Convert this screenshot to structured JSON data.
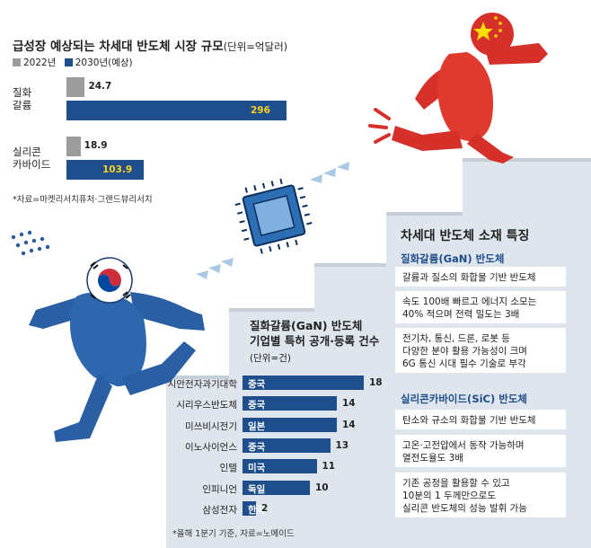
{
  "market_chart": {
    "title": "급성장 예상되는 차세대 반도체 시장 규모",
    "unit": "(단위=억달러)",
    "legend": [
      {
        "label": "2022년",
        "color": "#9c9c9c"
      },
      {
        "label": "2030년(예상)",
        "color": "#1f4e8c"
      }
    ],
    "source": "*자료=마켓리서치퓨처·그랜드뷰리서치"
  },
  "patent_chart": {
    "title_line1": "질화갈륨(GaN) 반도체",
    "title_line2": "기업별 특허 공개·등록 건수",
    "unit": "(단위=건)",
    "source": "*올해 1분기 기준, 자료=노메이드"
  },
  "features": {
    "title": "차세대 반도체 소재 특징",
    "gan": {
      "heading": "질화갈륨(GaN) 반도체",
      "items": [
        "갈륨과 질소의 화합물 기반 반도체",
        "속도 100배 빠르고 에너지 소모는\n40% 적으며 전력 밀도는 3배",
        "전기차, 통신, 드론, 로봇 등\n다양한 분야 활용 가능성이 크며\n6G 통신 시대 필수 기술로 부각"
      ]
    },
    "sic": {
      "heading": "실리콘카바이드(SiC) 반도체",
      "items": [
        "탄소와 규소의 화합물 기반 반도체",
        "고온·고전압에서 동작 가능하며\n열전도율도 3배",
        "기존 공정을 활용할 수 있고\n10분의 1 두께만으로도\n실리콘 반도체의 성능 발휘 가능"
      ]
    }
  },
  "chart_data": [
    {
      "type": "bar",
      "title": "급성장 예상되는 차세대 반도체 시장 규모",
      "unit": "억달러",
      "categories": [
        "질화\n갈륨",
        "실리콘\n카바이드"
      ],
      "series": [
        {
          "name": "2022년",
          "values": [
            24.7,
            18.9
          ],
          "labels": [
            "24.7",
            "18.9"
          ]
        },
        {
          "name": "2030년(예상)",
          "values": [
            296,
            103.9
          ],
          "labels": [
            "296",
            "103.9"
          ]
        }
      ],
      "xlim": [
        0,
        296
      ]
    },
    {
      "type": "bar",
      "title": "질화갈륨(GaN) 반도체 기업별 특허 공개·등록 건수",
      "unit": "건",
      "categories": [
        "시안전자과기대학",
        "시리우스반도체",
        "미쓰비시전기",
        "이노사이언스",
        "인텔",
        "인피니언",
        "삼성전자"
      ],
      "countries": [
        "중국",
        "중국",
        "일본",
        "중국",
        "미국",
        "독일",
        "한국"
      ],
      "values": [
        18,
        14,
        14,
        13,
        11,
        10,
        2
      ],
      "labels": [
        "18",
        "14",
        "14",
        "13",
        "11",
        "10",
        "2"
      ],
      "xlim": [
        0,
        18
      ]
    }
  ]
}
